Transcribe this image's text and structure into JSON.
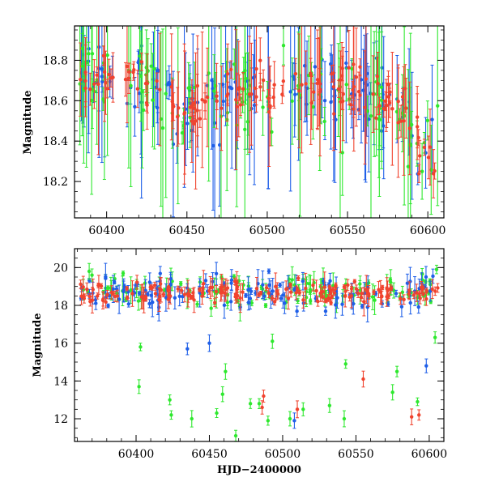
{
  "colors": {
    "green": "#2ee82e",
    "blue": "#1f5fe8",
    "red": "#f0432e",
    "frame": "#000000"
  },
  "chart_data": [
    {
      "type": "scatter",
      "panel": "top",
      "ylabel": "Magnitude",
      "xlabel": "",
      "xlim": [
        60380,
        60610
      ],
      "ylim": [
        18.97,
        18.02
      ],
      "y_inverted": true,
      "x_ticks": [
        60400,
        60450,
        60500,
        60550,
        60600
      ],
      "x_tick_labels": [
        "60400",
        "60450",
        "60500",
        "60550",
        "60600"
      ],
      "y_ticks": [
        18.2,
        18.4,
        18.6,
        18.8
      ],
      "y_tick_labels": [
        "18.2",
        "18.4",
        "18.6",
        "18.8"
      ],
      "series": [
        {
          "color_key": "blue",
          "base_mag": 18.68,
          "scatter": 0.09,
          "error_range": [
            0.05,
            0.5
          ],
          "points": 130
        },
        {
          "color_key": "green",
          "base_mag": 18.66,
          "scatter": 0.1,
          "error_range": [
            0.05,
            0.6
          ],
          "points": 110
        },
        {
          "color_key": "red",
          "base_mag": 18.68,
          "scatter": 0.06,
          "error_range": [
            0.04,
            0.35
          ],
          "points": 160
        }
      ],
      "approx_trend": [
        [
          60385,
          18.72
        ],
        [
          60420,
          18.7
        ],
        [
          60450,
          18.55
        ],
        [
          60480,
          18.65
        ],
        [
          60520,
          18.68
        ],
        [
          60560,
          18.65
        ],
        [
          60585,
          18.55
        ],
        [
          60600,
          18.3
        ],
        [
          60605,
          18.35
        ]
      ]
    },
    {
      "type": "scatter",
      "panel": "bottom",
      "ylabel": "Magnitude",
      "xlabel": "HJD−2400000",
      "xlim": [
        60358,
        60610
      ],
      "ylim": [
        21.0,
        10.8
      ],
      "y_inverted": true,
      "x_ticks": [
        60400,
        60450,
        60500,
        60550,
        60600
      ],
      "x_tick_labels": [
        "60400",
        "60450",
        "60500",
        "60550",
        "60600"
      ],
      "y_ticks": [
        12,
        14,
        16,
        18,
        20
      ],
      "y_tick_labels": [
        "12",
        "14",
        "16",
        "18",
        "20"
      ],
      "outliers": {
        "green": [
          [
            60368,
            19.8
          ],
          [
            60402,
            13.7
          ],
          [
            60403,
            15.8
          ],
          [
            60423,
            13.0
          ],
          [
            60424,
            12.2
          ],
          [
            60438,
            12.0
          ],
          [
            60455,
            12.3
          ],
          [
            60459,
            13.3
          ],
          [
            60461,
            14.5
          ],
          [
            60468,
            11.1
          ],
          [
            60478,
            12.8
          ],
          [
            60484,
            12.8
          ],
          [
            60490,
            11.9
          ],
          [
            60493,
            16.1
          ],
          [
            60505,
            12.0
          ],
          [
            60514,
            12.5
          ],
          [
            60532,
            12.7
          ],
          [
            60542,
            12.0
          ],
          [
            60543,
            14.9
          ],
          [
            60575,
            13.4
          ],
          [
            60578,
            14.5
          ],
          [
            60592,
            12.9
          ],
          [
            60604,
            16.3
          ],
          [
            60605,
            19.9
          ]
        ],
        "blue": [
          [
            60435,
            15.7
          ],
          [
            60450,
            16.0
          ],
          [
            60508,
            11.9
          ],
          [
            60598,
            14.8
          ]
        ],
        "red": [
          [
            60486,
            12.6
          ],
          [
            60487,
            13.2
          ],
          [
            60510,
            12.5
          ],
          [
            60555,
            14.1
          ],
          [
            60588,
            12.1
          ],
          [
            60593,
            12.2
          ]
        ]
      },
      "baseline_mag": 18.7
    }
  ]
}
